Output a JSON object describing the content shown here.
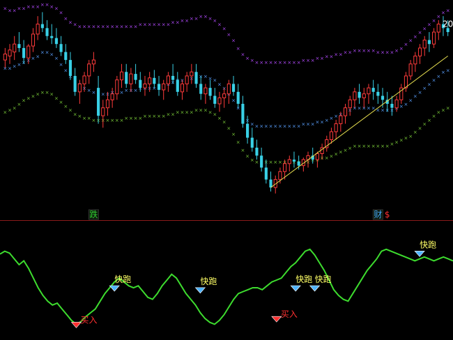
{
  "chart_data": [
    {
      "type": "candlestick",
      "panel": "price",
      "ylim": [
        0,
        100
      ],
      "colors": {
        "up": "#ff3b3b",
        "down": "#39d0e6",
        "neutral": "#ffffff",
        "upper_band": "#b44cff",
        "mid_band": "#5aa0ff",
        "lower_band": "#7ccd3a",
        "trendline": "#e8e050",
        "divider": "#8a1a1a"
      },
      "candles": [
        [
          72,
          78,
          68,
          75
        ],
        [
          74,
          80,
          70,
          77
        ],
        [
          76,
          84,
          72,
          80
        ],
        [
          80,
          86,
          76,
          78
        ],
        [
          78,
          82,
          70,
          73
        ],
        [
          73,
          80,
          70,
          79
        ],
        [
          79,
          88,
          76,
          85
        ],
        [
          85,
          94,
          82,
          90
        ],
        [
          90,
          96,
          86,
          88
        ],
        [
          88,
          92,
          82,
          84
        ],
        [
          84,
          90,
          80,
          83
        ],
        [
          83,
          88,
          78,
          80
        ],
        [
          80,
          84,
          74,
          76
        ],
        [
          76,
          80,
          70,
          72
        ],
        [
          72,
          76,
          62,
          64
        ],
        [
          64,
          68,
          54,
          56
        ],
        [
          56,
          62,
          50,
          60
        ],
        [
          60,
          66,
          56,
          64
        ],
        [
          64,
          72,
          60,
          70
        ],
        [
          70,
          76,
          66,
          72
        ],
        [
          58,
          64,
          40,
          44
        ],
        [
          44,
          52,
          38,
          48
        ],
        [
          48,
          56,
          44,
          52
        ],
        [
          52,
          58,
          48,
          55
        ],
        [
          55,
          64,
          52,
          62
        ],
        [
          62,
          70,
          58,
          66
        ],
        [
          66,
          70,
          58,
          60
        ],
        [
          60,
          68,
          56,
          65
        ],
        [
          65,
          70,
          60,
          62
        ],
        [
          62,
          66,
          56,
          58
        ],
        [
          58,
          64,
          54,
          60
        ],
        [
          60,
          66,
          56,
          63
        ],
        [
          63,
          67,
          58,
          60
        ],
        [
          60,
          64,
          54,
          57
        ],
        [
          57,
          62,
          52,
          60
        ],
        [
          60,
          66,
          56,
          64
        ],
        [
          64,
          70,
          60,
          62
        ],
        [
          62,
          66,
          54,
          56
        ],
        [
          56,
          62,
          52,
          60
        ],
        [
          60,
          66,
          56,
          64
        ],
        [
          64,
          70,
          60,
          66
        ],
        [
          66,
          70,
          58,
          60
        ],
        [
          60,
          64,
          52,
          55
        ],
        [
          55,
          60,
          50,
          58
        ],
        [
          58,
          62,
          52,
          54
        ],
        [
          54,
          58,
          48,
          50
        ],
        [
          50,
          56,
          46,
          53
        ],
        [
          53,
          58,
          48,
          55
        ],
        [
          55,
          62,
          50,
          60
        ],
        [
          60,
          64,
          54,
          56
        ],
        [
          56,
          60,
          48,
          50
        ],
        [
          50,
          54,
          38,
          40
        ],
        [
          40,
          44,
          30,
          33
        ],
        [
          33,
          38,
          26,
          28
        ],
        [
          28,
          32,
          22,
          24
        ],
        [
          24,
          28,
          16,
          18
        ],
        [
          18,
          22,
          10,
          12
        ],
        [
          12,
          16,
          6,
          8
        ],
        [
          8,
          14,
          5,
          12
        ],
        [
          12,
          18,
          10,
          16
        ],
        [
          16,
          22,
          12,
          20
        ],
        [
          20,
          24,
          16,
          22
        ],
        [
          22,
          26,
          18,
          21
        ],
        [
          21,
          24,
          17,
          19
        ],
        [
          19,
          23,
          16,
          22
        ],
        [
          22,
          26,
          18,
          24
        ],
        [
          24,
          28,
          20,
          22
        ],
        [
          22,
          26,
          18,
          25
        ],
        [
          25,
          30,
          22,
          28
        ],
        [
          28,
          34,
          26,
          32
        ],
        [
          32,
          38,
          30,
          36
        ],
        [
          36,
          42,
          32,
          40
        ],
        [
          40,
          46,
          36,
          44
        ],
        [
          44,
          50,
          40,
          48
        ],
        [
          48,
          54,
          44,
          52
        ],
        [
          52,
          58,
          48,
          56
        ],
        [
          56,
          60,
          50,
          53
        ],
        [
          53,
          58,
          48,
          55
        ],
        [
          55,
          60,
          50,
          58
        ],
        [
          58,
          62,
          52,
          56
        ],
        [
          56,
          60,
          50,
          54
        ],
        [
          54,
          58,
          48,
          52
        ],
        [
          52,
          56,
          46,
          50
        ],
        [
          50,
          54,
          44,
          48
        ],
        [
          48,
          54,
          46,
          52
        ],
        [
          52,
          60,
          50,
          58
        ],
        [
          58,
          66,
          56,
          64
        ],
        [
          64,
          72,
          62,
          70
        ],
        [
          70,
          76,
          66,
          74
        ],
        [
          74,
          80,
          70,
          78
        ],
        [
          78,
          84,
          74,
          82
        ],
        [
          82,
          86,
          76,
          80
        ],
        [
          80,
          88,
          78,
          86
        ],
        [
          86,
          92,
          82,
          90
        ],
        [
          90,
          94,
          84,
          88
        ],
        [
          88,
          92,
          84,
          86
        ]
      ],
      "band_upper": [
        98,
        97,
        97,
        98,
        98,
        99,
        99,
        99,
        100,
        100,
        99,
        98,
        96,
        93,
        91,
        90,
        89,
        89,
        89,
        89,
        89,
        89,
        89,
        89,
        89,
        89,
        89,
        89,
        89,
        90,
        90,
        90,
        90,
        90,
        90,
        90,
        91,
        91,
        92,
        92,
        93,
        93,
        94,
        94,
        93,
        92,
        90,
        88,
        85,
        82,
        78,
        75,
        73,
        72,
        71,
        71,
        71,
        71,
        71,
        71,
        71,
        71,
        71,
        71,
        72,
        72,
        72,
        73,
        73,
        74,
        74,
        75,
        75,
        76,
        76,
        77,
        77,
        77,
        77,
        77,
        76,
        76,
        76,
        76,
        77,
        78,
        80,
        82,
        84,
        86,
        88,
        90,
        92,
        94,
        96,
        97
      ],
      "band_mid": [
        68,
        68,
        69,
        70,
        71,
        72,
        73,
        74,
        76,
        76,
        75,
        73,
        70,
        67,
        64,
        62,
        60,
        58,
        57,
        56,
        55,
        55,
        55,
        56,
        56,
        56,
        57,
        57,
        57,
        58,
        58,
        58,
        58,
        59,
        59,
        60,
        61,
        62,
        62,
        63,
        63,
        64,
        64,
        64,
        63,
        62,
        60,
        58,
        55,
        52,
        48,
        44,
        42,
        40,
        39,
        39,
        39,
        39,
        39,
        39,
        39,
        39,
        39,
        39,
        40,
        40,
        40,
        41,
        41,
        42,
        43,
        44,
        45,
        46,
        47,
        48,
        48,
        48,
        48,
        48,
        47,
        47,
        47,
        47,
        48,
        49,
        50,
        52,
        54,
        56,
        58,
        60,
        62,
        64,
        66,
        67
      ],
      "band_lower": [
        46,
        47,
        48,
        50,
        52,
        53,
        54,
        55,
        56,
        56,
        55,
        53,
        51,
        49,
        47,
        45,
        44,
        43,
        43,
        42,
        42,
        42,
        42,
        42,
        42,
        42,
        43,
        43,
        43,
        43,
        44,
        44,
        44,
        44,
        44,
        45,
        45,
        46,
        46,
        46,
        46,
        47,
        47,
        47,
        46,
        45,
        43,
        41,
        38,
        35,
        31,
        27,
        24,
        22,
        21,
        21,
        21,
        21,
        21,
        21,
        21,
        21,
        21,
        21,
        21,
        21,
        22,
        22,
        23,
        23,
        24,
        25,
        26,
        27,
        28,
        29,
        29,
        29,
        29,
        29,
        29,
        29,
        29,
        30,
        31,
        32,
        33,
        34,
        36,
        38,
        40,
        42,
        44,
        46,
        47,
        48
      ],
      "trendline": {
        "from": [
          57,
          8
        ],
        "to": [
          95,
          74
        ]
      },
      "annotations": [
        {
          "text": "跌",
          "index": 19,
          "color": "#33cc33",
          "boxed": true
        },
        {
          "text": "财",
          "index": 80,
          "color": "#4aa8ff",
          "boxed": true
        },
        {
          "text": "$",
          "index": 82,
          "color": "#ff3030",
          "boxed": false
        },
        {
          "text": "20",
          "index": 95,
          "color": "#ffffff",
          "boxed": false,
          "level": 90
        }
      ]
    },
    {
      "type": "line",
      "panel": "indicator",
      "ylim": [
        0,
        100
      ],
      "color": "#3ddc2e",
      "values": [
        85,
        88,
        86,
        80,
        74,
        78,
        70,
        60,
        50,
        42,
        36,
        32,
        34,
        28,
        22,
        16,
        12,
        15,
        20,
        24,
        28,
        36,
        44,
        50,
        56,
        60,
        56,
        52,
        50,
        52,
        46,
        40,
        38,
        44,
        52,
        58,
        64,
        60,
        52,
        44,
        38,
        32,
        24,
        18,
        14,
        12,
        16,
        22,
        30,
        38,
        44,
        46,
        48,
        50,
        50,
        48,
        52,
        56,
        58,
        60,
        66,
        72,
        76,
        82,
        88,
        90,
        84,
        76,
        68,
        58,
        48,
        42,
        38,
        36,
        44,
        52,
        60,
        68,
        74,
        80,
        88,
        90,
        88,
        86,
        84,
        82,
        80,
        78,
        80,
        82,
        80,
        78,
        80,
        82,
        80,
        78
      ],
      "signals": [
        {
          "type": "buy",
          "text": "买入",
          "index": 16,
          "value": 12
        },
        {
          "type": "sell",
          "text": "快跑",
          "index": 24,
          "value": 50
        },
        {
          "type": "sell",
          "text": "快跑",
          "index": 42,
          "value": 48
        },
        {
          "type": "buy",
          "text": "买入",
          "index": 58,
          "value": 18
        },
        {
          "type": "sell",
          "text": "快跑",
          "index": 62,
          "value": 50
        },
        {
          "type": "sell",
          "text": "快跑",
          "index": 66,
          "value": 50
        },
        {
          "type": "sell",
          "text": "快跑",
          "index": 88,
          "value": 86
        }
      ]
    }
  ]
}
